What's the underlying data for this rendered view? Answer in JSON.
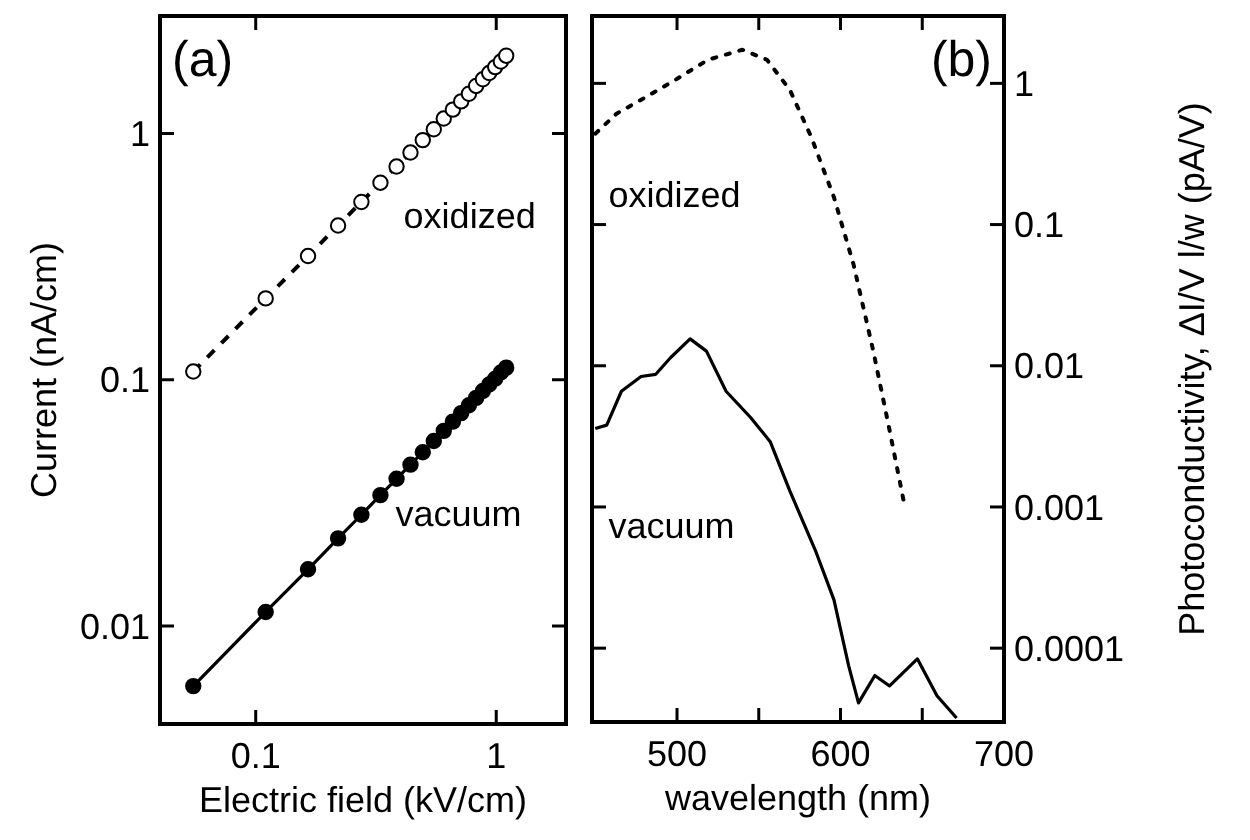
{
  "chart_data": [
    {
      "type": "line",
      "title": "(a)",
      "xlabel": "Electric field (kV/cm)",
      "ylabel": "Current (nA/cm)",
      "log": "xy",
      "xlim": [
        0.04,
        1.95
      ],
      "ylim": [
        0.004,
        3
      ],
      "xticks": [
        0.1,
        1
      ],
      "yticks": [
        0.01,
        0.1,
        1
      ],
      "grid": false,
      "x": [
        0.055,
        0.11,
        0.165,
        0.22,
        0.275,
        0.33,
        0.385,
        0.44,
        0.495,
        0.55,
        0.605,
        0.66,
        0.715,
        0.77,
        0.825,
        0.88,
        0.935,
        0.99,
        1.045,
        1.1
      ],
      "series": [
        {
          "name": "oxidized",
          "color": "#000000",
          "marker": "circle",
          "line_style": "dashed",
          "values": [
            0.108,
            0.214,
            0.318,
            0.423,
            0.527,
            0.631,
            0.734,
            0.837,
            0.94,
            1.04,
            1.15,
            1.25,
            1.35,
            1.45,
            1.56,
            1.66,
            1.76,
            1.86,
            1.96,
            2.07
          ]
        },
        {
          "name": "vacuum",
          "color": "#000000",
          "marker": "circle",
          "line_style": "solid",
          "values": [
            0.0057,
            0.0114,
            0.017,
            0.0227,
            0.0283,
            0.034,
            0.0396,
            0.0452,
            0.0508,
            0.0564,
            0.062,
            0.0676,
            0.0732,
            0.0788,
            0.0844,
            0.09,
            0.0956,
            0.101,
            0.107,
            0.112
          ]
        }
      ]
    },
    {
      "type": "line",
      "title": "(b)",
      "xlabel": "wavelength (nm)",
      "y2label": "Photoconductivity, ΔI/V l/w (pA/V)",
      "log": "y2",
      "xlim": [
        448,
        700
      ],
      "y2lim": [
        3e-05,
        3
      ],
      "xticks": [
        500,
        {
          "value": 550,
          "label": null
        },
        600,
        {
          "value": 650,
          "label": null
        },
        700
      ],
      "y2ticks": [
        0.0001,
        0.001,
        0.01,
        0.1,
        1
      ],
      "grid": false,
      "series": [
        {
          "name": "oxidized",
          "color": "#000000",
          "axis": "y2",
          "marker": "none",
          "line_style": "dotted",
          "x": [
            450,
            463,
            481,
            499,
            519,
            540,
            555,
            569,
            582,
            596,
            608,
            620,
            630,
            639
          ],
          "values": [
            0.44,
            0.61,
            0.8,
            1.06,
            1.47,
            1.73,
            1.47,
            0.9,
            0.42,
            0.156,
            0.052,
            0.0128,
            0.0035,
            0.00105
          ]
        },
        {
          "name": "vacuum",
          "color": "#000000",
          "axis": "y2",
          "marker": "none",
          "line_style": "solid",
          "x": [
            450,
            457,
            466,
            478,
            487,
            496,
            508,
            518,
            530,
            545,
            557,
            569,
            585,
            596,
            605,
            611,
            621,
            630,
            647,
            659,
            671
          ],
          "values": [
            0.0036,
            0.0038,
            0.0066,
            0.0084,
            0.0087,
            0.0114,
            0.0155,
            0.0127,
            0.0066,
            0.0043,
            0.0029,
            0.0013,
            0.00048,
            0.00022,
            7.5e-05,
            4.1e-05,
            6.4e-05,
            5.4e-05,
            8.4e-05,
            4.6e-05,
            3.2e-05
          ]
        }
      ]
    }
  ]
}
